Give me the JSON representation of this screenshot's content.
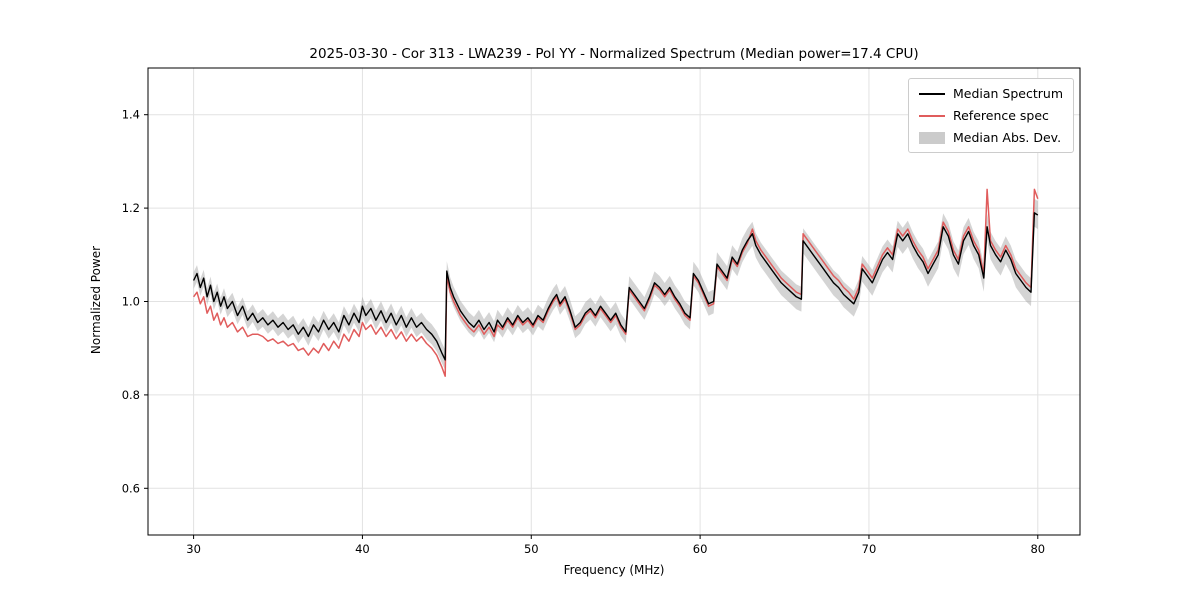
{
  "chart_data": {
    "type": "line",
    "title": "2025-03-30 - Cor 313 - LWA239 - Pol YY - Normalized Spectrum (Median power=17.4 CPU)",
    "xlabel": "Frequency (MHz)",
    "ylabel": "Normalized Power",
    "xlim": [
      27.3,
      82.5
    ],
    "ylim": [
      0.5,
      1.5
    ],
    "xticks": [
      30,
      40,
      50,
      60,
      70,
      80
    ],
    "yticks": [
      0.6,
      0.8,
      1.0,
      1.2,
      1.4
    ],
    "grid": true,
    "legend_position": "upper right",
    "colors": {
      "median": "#000000",
      "reference": "#e05c5c",
      "mad_band": "rgba(160,160,160,0.45)"
    },
    "legend": {
      "items": [
        {
          "label": "Median Spectrum",
          "type": "line",
          "color": "#000000"
        },
        {
          "label": "Reference spec",
          "type": "line",
          "color": "#e05c5c"
        },
        {
          "label": "Median Abs. Dev.",
          "type": "patch",
          "color": "rgba(160,160,160,0.55)"
        }
      ]
    },
    "mad_halfwidth": {
      "at_xmin": 0.018,
      "at_xmax": 0.03,
      "from_x": 30,
      "to_x": 80
    },
    "x": [
      30.0,
      30.2,
      30.4,
      30.6,
      30.8,
      31.0,
      31.2,
      31.4,
      31.6,
      31.8,
      32.0,
      32.3,
      32.6,
      32.9,
      33.2,
      33.5,
      33.8,
      34.1,
      34.4,
      34.7,
      35.0,
      35.3,
      35.6,
      35.9,
      36.2,
      36.5,
      36.8,
      37.1,
      37.4,
      37.7,
      38.0,
      38.3,
      38.6,
      38.9,
      39.2,
      39.5,
      39.8,
      40.0,
      40.2,
      40.5,
      40.8,
      41.1,
      41.4,
      41.7,
      42.0,
      42.3,
      42.6,
      42.9,
      43.2,
      43.5,
      43.8,
      44.1,
      44.4,
      44.7,
      44.9,
      45.0,
      45.2,
      45.4,
      45.6,
      45.8,
      46.0,
      46.3,
      46.6,
      46.9,
      47.2,
      47.5,
      47.8,
      48.0,
      48.3,
      48.6,
      48.9,
      49.2,
      49.5,
      49.8,
      50.1,
      50.4,
      50.7,
      51.0,
      51.3,
      51.5,
      51.7,
      52.0,
      52.3,
      52.6,
      52.9,
      53.2,
      53.5,
      53.8,
      54.1,
      54.4,
      54.7,
      55.0,
      55.3,
      55.6,
      55.8,
      56.1,
      56.4,
      56.7,
      57.0,
      57.3,
      57.6,
      57.9,
      58.2,
      58.5,
      58.8,
      59.1,
      59.4,
      59.6,
      59.9,
      60.2,
      60.5,
      60.8,
      61.0,
      61.3,
      61.6,
      61.9,
      62.2,
      62.5,
      62.8,
      63.1,
      63.3,
      63.6,
      63.9,
      64.2,
      64.5,
      64.8,
      65.1,
      65.4,
      65.7,
      66.0,
      66.1,
      66.4,
      66.7,
      67.0,
      67.3,
      67.6,
      67.9,
      68.2,
      68.5,
      68.8,
      69.1,
      69.4,
      69.6,
      69.9,
      70.2,
      70.5,
      70.8,
      71.1,
      71.4,
      71.7,
      72.0,
      72.3,
      72.6,
      72.9,
      73.2,
      73.5,
      73.8,
      74.1,
      74.4,
      74.7,
      75.0,
      75.3,
      75.6,
      75.9,
      76.2,
      76.5,
      76.8,
      77.0,
      77.2,
      77.5,
      77.8,
      78.1,
      78.4,
      78.7,
      79.0,
      79.3,
      79.6,
      79.8,
      80.0
    ],
    "series": [
      {
        "name": "Median Spectrum",
        "values": [
          1.045,
          1.06,
          1.03,
          1.05,
          1.01,
          1.035,
          1.0,
          1.02,
          0.99,
          1.01,
          0.985,
          1.0,
          0.97,
          0.99,
          0.96,
          0.975,
          0.955,
          0.965,
          0.95,
          0.96,
          0.945,
          0.955,
          0.94,
          0.95,
          0.93,
          0.945,
          0.925,
          0.95,
          0.935,
          0.96,
          0.94,
          0.955,
          0.935,
          0.97,
          0.95,
          0.975,
          0.955,
          0.99,
          0.97,
          0.985,
          0.96,
          0.98,
          0.955,
          0.975,
          0.95,
          0.97,
          0.945,
          0.965,
          0.945,
          0.955,
          0.94,
          0.93,
          0.915,
          0.89,
          0.875,
          1.065,
          1.03,
          1.01,
          0.995,
          0.98,
          0.97,
          0.955,
          0.945,
          0.96,
          0.94,
          0.955,
          0.935,
          0.96,
          0.945,
          0.965,
          0.95,
          0.97,
          0.955,
          0.965,
          0.95,
          0.97,
          0.96,
          0.985,
          1.005,
          1.015,
          0.995,
          1.01,
          0.98,
          0.945,
          0.955,
          0.975,
          0.985,
          0.97,
          0.99,
          0.975,
          0.96,
          0.975,
          0.95,
          0.935,
          1.03,
          1.015,
          1.0,
          0.985,
          1.01,
          1.04,
          1.03,
          1.015,
          1.03,
          1.01,
          0.995,
          0.975,
          0.965,
          1.06,
          1.045,
          1.02,
          0.995,
          1.0,
          1.08,
          1.065,
          1.05,
          1.095,
          1.08,
          1.11,
          1.13,
          1.145,
          1.12,
          1.1,
          1.085,
          1.07,
          1.055,
          1.04,
          1.03,
          1.02,
          1.01,
          1.005,
          1.13,
          1.115,
          1.1,
          1.085,
          1.07,
          1.055,
          1.04,
          1.03,
          1.015,
          1.005,
          0.995,
          1.02,
          1.07,
          1.055,
          1.04,
          1.065,
          1.09,
          1.105,
          1.09,
          1.145,
          1.13,
          1.145,
          1.12,
          1.1,
          1.085,
          1.06,
          1.08,
          1.1,
          1.16,
          1.14,
          1.1,
          1.08,
          1.13,
          1.15,
          1.12,
          1.1,
          1.05,
          1.16,
          1.12,
          1.1,
          1.085,
          1.11,
          1.09,
          1.06,
          1.045,
          1.03,
          1.02,
          1.19,
          1.185
        ]
      },
      {
        "name": "Reference spec",
        "values": [
          1.01,
          1.02,
          0.995,
          1.01,
          0.975,
          0.99,
          0.96,
          0.975,
          0.95,
          0.965,
          0.945,
          0.955,
          0.935,
          0.945,
          0.925,
          0.93,
          0.93,
          0.925,
          0.915,
          0.92,
          0.91,
          0.915,
          0.905,
          0.91,
          0.895,
          0.9,
          0.885,
          0.9,
          0.89,
          0.91,
          0.895,
          0.915,
          0.9,
          0.93,
          0.915,
          0.94,
          0.925,
          0.955,
          0.94,
          0.95,
          0.93,
          0.945,
          0.925,
          0.94,
          0.92,
          0.935,
          0.915,
          0.93,
          0.915,
          0.925,
          0.91,
          0.9,
          0.885,
          0.86,
          0.84,
          1.055,
          1.02,
          1.0,
          0.985,
          0.97,
          0.96,
          0.945,
          0.935,
          0.95,
          0.93,
          0.945,
          0.925,
          0.95,
          0.94,
          0.96,
          0.945,
          0.965,
          0.95,
          0.96,
          0.945,
          0.965,
          0.955,
          0.98,
          1.0,
          1.01,
          0.99,
          1.005,
          0.975,
          0.94,
          0.95,
          0.97,
          0.98,
          0.965,
          0.985,
          0.97,
          0.955,
          0.97,
          0.945,
          0.93,
          1.025,
          1.01,
          0.995,
          0.98,
          1.005,
          1.035,
          1.025,
          1.01,
          1.025,
          1.005,
          0.99,
          0.97,
          0.96,
          1.055,
          1.04,
          1.015,
          0.99,
          0.995,
          1.075,
          1.06,
          1.045,
          1.09,
          1.075,
          1.105,
          1.125,
          1.155,
          1.13,
          1.11,
          1.095,
          1.08,
          1.065,
          1.05,
          1.04,
          1.03,
          1.02,
          1.015,
          1.145,
          1.13,
          1.115,
          1.1,
          1.085,
          1.07,
          1.055,
          1.045,
          1.03,
          1.02,
          1.005,
          1.03,
          1.08,
          1.065,
          1.05,
          1.075,
          1.1,
          1.115,
          1.1,
          1.155,
          1.14,
          1.155,
          1.13,
          1.11,
          1.095,
          1.07,
          1.09,
          1.11,
          1.17,
          1.15,
          1.11,
          1.09,
          1.14,
          1.16,
          1.13,
          1.11,
          1.06,
          1.24,
          1.13,
          1.11,
          1.095,
          1.12,
          1.1,
          1.07,
          1.055,
          1.04,
          1.03,
          1.24,
          1.22
        ]
      }
    ]
  }
}
